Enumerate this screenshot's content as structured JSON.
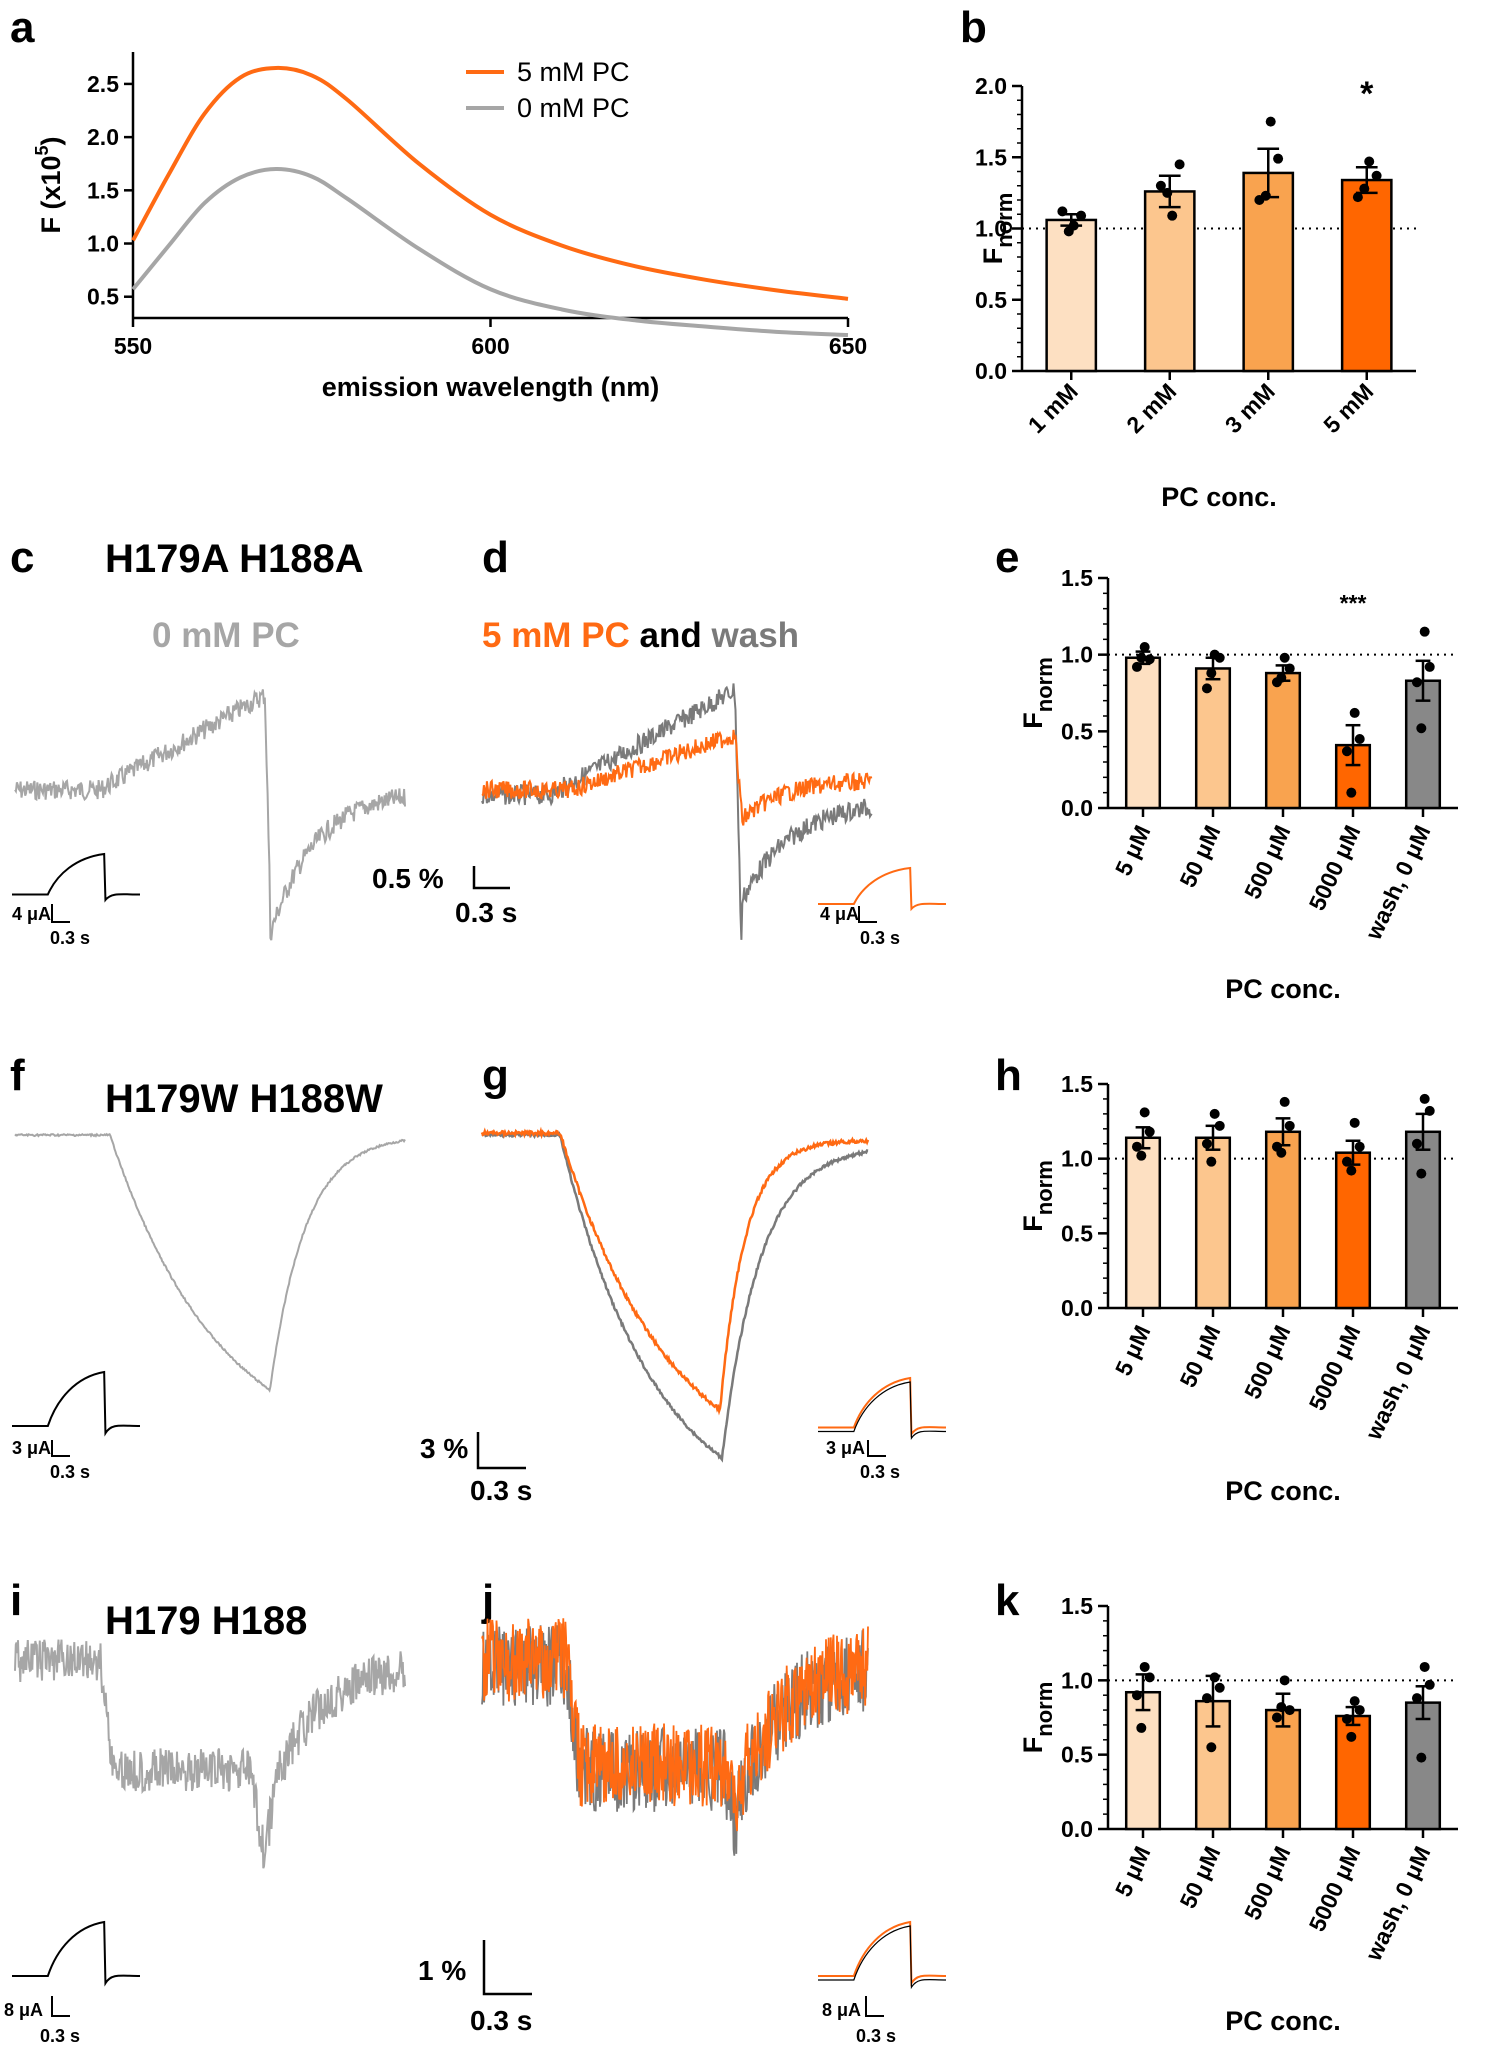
{
  "colors": {
    "c1": "#FDE0C2",
    "c2": "#FCC68E",
    "c3": "#F9A34F",
    "c4": "#FF6600",
    "grey_bar": "#888888",
    "grey_trace": "#A6A6A6",
    "grey_dark": "#7A7A7A",
    "orange": "#FF6A13"
  },
  "panel_labels": [
    "a",
    "b",
    "c",
    "d",
    "e",
    "f",
    "g",
    "h",
    "i",
    "j",
    "k"
  ],
  "titles": {
    "c": "H179A H188A",
    "f": "H179W H188W",
    "i": "H179 H188",
    "c_sub": "0 mM PC",
    "d_sub_orange": "5 mM PC",
    "d_sub_black": "and",
    "d_sub_grey": "wash"
  },
  "scale_bars": {
    "c_current": "4 μA",
    "c_time": "0.3 s",
    "d_fluor": "0.5 %",
    "d_time": "0.3 s",
    "d_current": "4 μA",
    "d_time2": "0.3 s",
    "f_current": "3 μA",
    "f_time": "0.3 s",
    "g_fluor": "3 %",
    "g_time": "0.3 s",
    "g_current": "3 μA",
    "g_time2": "0.3 s",
    "i_current": "8 μA",
    "i_time": "0.3 s",
    "j_fluor": "1 %",
    "j_time": "0.3 s",
    "j_current": "8 μA",
    "j_time2": "0.3 s"
  },
  "chart_data": [
    {
      "id": "a",
      "type": "line",
      "xlabel": "emission wavelength (nm)",
      "ylabel": "F (x10",
      "ylabel_sup": "5",
      "ylabel_end": ")",
      "xlim": [
        550,
        650
      ],
      "ylim": [
        0.3,
        2.8
      ],
      "xticks": [
        550,
        600,
        650
      ],
      "xtick_labels": [
        "550",
        "600",
        "650"
      ],
      "yticks": [
        0.5,
        1.0,
        1.5,
        2.0,
        2.5
      ],
      "ytick_labels": [
        "0.5",
        "1.0",
        "1.5",
        "2.0",
        "2.5"
      ],
      "legend": [
        "5 mM PC",
        "0 mM PC"
      ],
      "series": [
        {
          "name": "5 mM PC",
          "color": "#FF6A13",
          "x": [
            550,
            555,
            560,
            565,
            570,
            575,
            580,
            590,
            600,
            610,
            620,
            630,
            640,
            650
          ],
          "y": [
            1.03,
            1.65,
            2.22,
            2.56,
            2.65,
            2.58,
            2.35,
            1.75,
            1.27,
            0.98,
            0.79,
            0.66,
            0.56,
            0.48
          ]
        },
        {
          "name": "0 mM PC",
          "color": "#A6A6A6",
          "x": [
            550,
            555,
            560,
            565,
            570,
            575,
            580,
            590,
            600,
            610,
            620,
            630,
            640,
            650
          ],
          "y": [
            0.57,
            0.98,
            1.38,
            1.62,
            1.7,
            1.63,
            1.42,
            0.95,
            0.57,
            0.38,
            0.28,
            0.22,
            0.17,
            0.14
          ]
        }
      ]
    },
    {
      "id": "b",
      "type": "bar",
      "xlabel": "PC conc.",
      "ylabel": "F",
      "ylabel_sub": "norm",
      "categories": [
        "1 mM",
        "2 mM",
        "3 mM",
        "5 mM"
      ],
      "values": [
        1.06,
        1.26,
        1.39,
        1.34
      ],
      "errors": [
        0.04,
        0.11,
        0.17,
        0.09
      ],
      "points": [
        [
          1.02,
          1.09,
          1.12,
          0.98
        ],
        [
          1.09,
          1.45,
          1.3,
          1.25
        ],
        [
          1.75,
          1.49,
          1.2,
          1.23
        ],
        [
          1.47,
          1.37,
          1.22,
          1.28
        ]
      ],
      "colors": [
        "#FDE0C2",
        "#FCC68E",
        "#F9A34F",
        "#FF6600"
      ],
      "ylim": [
        0,
        2.0
      ],
      "yticks": [
        0,
        0.5,
        1.0,
        1.5,
        2.0
      ],
      "ytick_labels": [
        "0.0",
        "0.5",
        "1.0",
        "1.5",
        "2.0"
      ],
      "ref_line": 1.0,
      "significance": [
        "",
        "",
        "",
        "*"
      ]
    },
    {
      "id": "e",
      "type": "bar",
      "xlabel": "PC conc.",
      "ylabel": "F",
      "ylabel_sub": "norm",
      "categories": [
        "5 μM",
        "50 μM",
        "500 μM",
        "5000 μM",
        "wash, 0 μM"
      ],
      "values": [
        0.98,
        0.91,
        0.88,
        0.41,
        0.83
      ],
      "errors": [
        0.04,
        0.07,
        0.05,
        0.13,
        0.13
      ],
      "points": [
        [
          1.05,
          0.97,
          0.92,
          0.98
        ],
        [
          1.0,
          0.98,
          0.78,
          0.88
        ],
        [
          0.98,
          0.91,
          0.82,
          0.85
        ],
        [
          0.62,
          0.45,
          0.37,
          0.1
        ],
        [
          1.15,
          0.92,
          0.82,
          0.52
        ]
      ],
      "colors": [
        "#FDE0C2",
        "#FCC68E",
        "#F9A34F",
        "#FF6600",
        "#888888"
      ],
      "ylim": [
        0,
        1.5
      ],
      "yticks": [
        0,
        0.5,
        1.0,
        1.5
      ],
      "ytick_labels": [
        "0.0",
        "0.5",
        "1.0",
        "1.5"
      ],
      "ref_line": 1.0,
      "significance": [
        "",
        "",
        "",
        "***",
        ""
      ]
    },
    {
      "id": "h",
      "type": "bar",
      "xlabel": "PC conc.",
      "ylabel": "F",
      "ylabel_sub": "norm",
      "categories": [
        "5 μM",
        "50 μM",
        "500 μM",
        "5000 μM",
        "wash, 0 μM"
      ],
      "values": [
        1.14,
        1.14,
        1.18,
        1.04,
        1.18
      ],
      "errors": [
        0.07,
        0.08,
        0.09,
        0.08,
        0.12
      ],
      "points": [
        [
          1.31,
          1.18,
          1.08,
          1.02
        ],
        [
          1.3,
          1.22,
          1.1,
          0.98
        ],
        [
          1.38,
          1.22,
          1.08,
          1.04
        ],
        [
          1.24,
          1.08,
          0.98,
          0.92
        ],
        [
          1.4,
          1.32,
          1.1,
          0.9
        ]
      ],
      "colors": [
        "#FDE0C2",
        "#FCC68E",
        "#F9A34F",
        "#FF6600",
        "#888888"
      ],
      "ylim": [
        0,
        1.5
      ],
      "yticks": [
        0,
        0.5,
        1.0,
        1.5
      ],
      "ytick_labels": [
        "0.0",
        "0.5",
        "1.0",
        "1.5"
      ],
      "ref_line": 1.0,
      "significance": [
        "",
        "",
        "",
        "",
        ""
      ]
    },
    {
      "id": "k",
      "type": "bar",
      "xlabel": "PC conc.",
      "ylabel": "F",
      "ylabel_sub": "norm",
      "categories": [
        "5 μM",
        "50 μM",
        "500 μM",
        "5000 μM",
        "wash, 0 μM"
      ],
      "values": [
        0.92,
        0.86,
        0.8,
        0.76,
        0.85
      ],
      "errors": [
        0.12,
        0.17,
        0.11,
        0.06,
        0.11
      ],
      "points": [
        [
          1.09,
          1.02,
          0.9,
          0.68
        ],
        [
          1.02,
          0.95,
          0.88,
          0.55
        ],
        [
          1.0,
          0.8,
          0.75,
          0.82
        ],
        [
          0.86,
          0.8,
          0.74,
          0.62
        ],
        [
          1.09,
          0.97,
          0.88,
          0.48
        ]
      ],
      "colors": [
        "#FDE0C2",
        "#FCC68E",
        "#F9A34F",
        "#FF6600",
        "#888888"
      ],
      "ylim": [
        0,
        1.5
      ],
      "yticks": [
        0,
        0.5,
        1.0,
        1.5
      ],
      "ytick_labels": [
        "0.0",
        "0.5",
        "1.0",
        "1.5"
      ],
      "ref_line": 1.0,
      "significance": [
        "",
        "",
        "",
        "",
        ""
      ]
    }
  ]
}
